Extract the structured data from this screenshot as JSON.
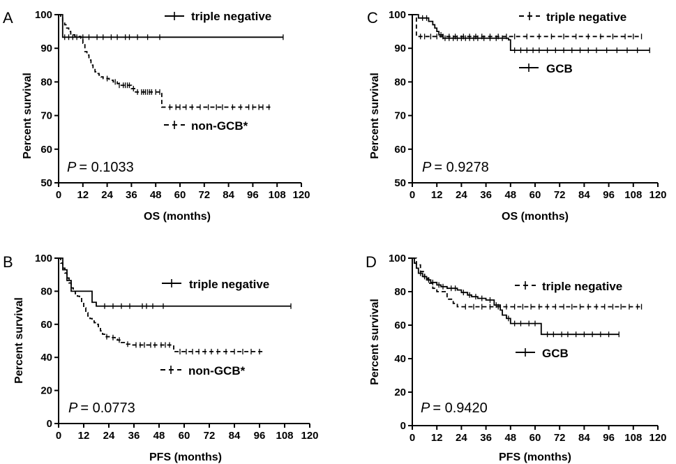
{
  "colors": {
    "ink": "#000000",
    "background": "#ffffff"
  },
  "chart_data": [
    {
      "panel": "A",
      "type": "line",
      "subtype": "kaplan-meier step",
      "xlabel": "OS (months)",
      "ylabel": "Percent survival",
      "xlim": [
        0,
        120
      ],
      "ylim": [
        50,
        100
      ],
      "xticks": [
        0,
        12,
        24,
        36,
        48,
        60,
        72,
        84,
        96,
        108,
        120
      ],
      "yticks": [
        50,
        60,
        70,
        80,
        90,
        100
      ],
      "pvalue_label": "P",
      "pvalue": "= 0.1033",
      "legend": [
        {
          "name": "triple negative",
          "style": "solid",
          "placement": "top"
        },
        {
          "name": "non-GCB*",
          "style": "dashed",
          "placement": "middle"
        }
      ],
      "series": [
        {
          "name": "triple negative",
          "style": "solid",
          "steps": [
            [
              0,
              100
            ],
            [
              2,
              93.3
            ],
            [
              111,
              93.3
            ]
          ],
          "censors": [
            3,
            5,
            7,
            9,
            12,
            15,
            19,
            22,
            26,
            29,
            33,
            35,
            39,
            44,
            50,
            111
          ]
        },
        {
          "name": "non-GCB*",
          "style": "dashed",
          "steps": [
            [
              0,
              100
            ],
            [
              1,
              99
            ],
            [
              2,
              98
            ],
            [
              3,
              97
            ],
            [
              4,
              96
            ],
            [
              5,
              95
            ],
            [
              6,
              94
            ],
            [
              8,
              93.5
            ],
            [
              11,
              93
            ],
            [
              12,
              91.5
            ],
            [
              13,
              89
            ],
            [
              14,
              88
            ],
            [
              15,
              86.5
            ],
            [
              16,
              85
            ],
            [
              17,
              84
            ],
            [
              18,
              83
            ],
            [
              19,
              82.5
            ],
            [
              20,
              82
            ],
            [
              21,
              81.5
            ],
            [
              22,
              81
            ],
            [
              25,
              80.5
            ],
            [
              27,
              80
            ],
            [
              29,
              79.5
            ],
            [
              30,
              79
            ],
            [
              36,
              78
            ],
            [
              38,
              77
            ],
            [
              51,
              72.5
            ],
            [
              105,
              72.5
            ]
          ],
          "censors": [
            24,
            28,
            30,
            32,
            33,
            34,
            35,
            37,
            39,
            41,
            42,
            43,
            44,
            45,
            46,
            48,
            50,
            55,
            58,
            60,
            63,
            66,
            70,
            74,
            78,
            81,
            86,
            90,
            94,
            96,
            99,
            101,
            104
          ]
        }
      ]
    },
    {
      "panel": "B",
      "type": "line",
      "subtype": "kaplan-meier step",
      "xlabel": "PFS (months)",
      "ylabel": "Percent survival",
      "xlim": [
        0,
        120
      ],
      "ylim": [
        0,
        100
      ],
      "xticks": [
        0,
        12,
        24,
        36,
        48,
        60,
        72,
        84,
        96,
        108,
        120
      ],
      "yticks": [
        0,
        20,
        40,
        60,
        80,
        100
      ],
      "pvalue_label": "P",
      "pvalue": "= 0.0773",
      "legend": [
        {
          "name": "triple negative",
          "style": "solid",
          "placement": "top"
        },
        {
          "name": "non-GCB*",
          "style": "dashed",
          "placement": "bottom"
        }
      ],
      "series": [
        {
          "name": "triple negative",
          "style": "solid",
          "steps": [
            [
              0,
              100
            ],
            [
              2,
              93
            ],
            [
              4,
              86.5
            ],
            [
              6,
              80
            ],
            [
              16,
              73.3
            ],
            [
              18,
              71
            ],
            [
              111,
              71
            ]
          ],
          "censors": [
            22,
            26,
            30,
            34,
            40,
            42,
            45,
            50,
            111
          ]
        },
        {
          "name": "non-GCB*",
          "style": "dashed",
          "steps": [
            [
              0,
              100
            ],
            [
              1,
              97
            ],
            [
              2,
              94
            ],
            [
              3,
              91
            ],
            [
              4,
              88
            ],
            [
              5,
              85
            ],
            [
              6,
              82
            ],
            [
              7,
              80
            ],
            [
              8,
              78.5
            ],
            [
              9,
              77
            ],
            [
              10,
              76
            ],
            [
              11,
              73
            ],
            [
              12,
              70
            ],
            [
              13,
              67
            ],
            [
              14,
              65
            ],
            [
              15,
              63.5
            ],
            [
              16,
              62
            ],
            [
              17,
              61
            ],
            [
              18,
              60
            ],
            [
              19,
              58
            ],
            [
              20,
              56
            ],
            [
              21,
              54
            ],
            [
              22,
              52.5
            ],
            [
              25,
              52
            ],
            [
              27,
              51
            ],
            [
              28,
              50.5
            ],
            [
              30,
              49
            ],
            [
              32,
              48
            ],
            [
              34,
              47.5
            ],
            [
              55,
              43.5
            ],
            [
              98,
              43.5
            ]
          ],
          "censors": [
            23,
            26,
            29,
            33,
            37,
            39,
            41,
            44,
            46,
            49,
            51,
            53,
            58,
            61,
            64,
            67,
            70,
            73,
            76,
            80,
            84,
            88,
            92,
            96
          ]
        }
      ]
    },
    {
      "panel": "C",
      "type": "line",
      "subtype": "kaplan-meier step",
      "xlabel": "OS (months)",
      "ylabel": "Percent survival",
      "xlim": [
        0,
        120
      ],
      "ylim": [
        50,
        100
      ],
      "xticks": [
        0,
        12,
        24,
        36,
        48,
        60,
        72,
        84,
        96,
        108,
        120
      ],
      "yticks": [
        50,
        60,
        70,
        80,
        90,
        100
      ],
      "pvalue_label": "P",
      "pvalue": "= 0.9278",
      "legend": [
        {
          "name": "triple negative",
          "style": "dashed",
          "placement": "top"
        },
        {
          "name": "GCB",
          "style": "solid",
          "placement": "middle"
        }
      ],
      "series": [
        {
          "name": "triple negative",
          "style": "dashed",
          "steps": [
            [
              0,
              100
            ],
            [
              2,
              93.5
            ],
            [
              112,
              93.5
            ]
          ],
          "censors": [
            4,
            6,
            9,
            12,
            15,
            18,
            21,
            25,
            28,
            31,
            34,
            38,
            42,
            46,
            50,
            56,
            62,
            68,
            74,
            80,
            86,
            92,
            98,
            104,
            108,
            112
          ]
        },
        {
          "name": "GCB",
          "style": "solid",
          "steps": [
            [
              0,
              100
            ],
            [
              3,
              99
            ],
            [
              8,
              98
            ],
            [
              10,
              97
            ],
            [
              11,
              96
            ],
            [
              12,
              95
            ],
            [
              13,
              94
            ],
            [
              15,
              93
            ],
            [
              47,
              92.5
            ],
            [
              48,
              89.4
            ],
            [
              116,
              89.4
            ]
          ],
          "censors": [
            5,
            7,
            14,
            16,
            18,
            20,
            22,
            24,
            26,
            28,
            30,
            32,
            35,
            38,
            41,
            44,
            50,
            53,
            56,
            59,
            62,
            66,
            70,
            74,
            78,
            82,
            86,
            90,
            95,
            100,
            105,
            110,
            116
          ]
        }
      ]
    },
    {
      "panel": "D",
      "type": "line",
      "subtype": "kaplan-meier step",
      "xlabel": "PFS (months)",
      "ylabel": "Percent survival",
      "xlim": [
        0,
        120
      ],
      "ylim": [
        0,
        100
      ],
      "xticks": [
        0,
        12,
        24,
        36,
        48,
        60,
        72,
        84,
        96,
        108,
        120
      ],
      "yticks": [
        0,
        20,
        40,
        60,
        80,
        100
      ],
      "pvalue_label": "P",
      "pvalue": "= 0.9420",
      "legend": [
        {
          "name": "triple negative",
          "style": "dashed",
          "placement": "top"
        },
        {
          "name": "GCB",
          "style": "solid",
          "placement": "bottom"
        }
      ],
      "series": [
        {
          "name": "triple negative",
          "style": "dashed",
          "steps": [
            [
              0,
              100
            ],
            [
              2,
              96
            ],
            [
              4,
              92
            ],
            [
              6,
              88
            ],
            [
              8,
              85
            ],
            [
              10,
              82
            ],
            [
              12,
              80
            ],
            [
              17,
              75.5
            ],
            [
              20,
              73
            ],
            [
              22,
              71
            ],
            [
              112,
              71
            ]
          ],
          "censors": [
            26,
            30,
            34,
            38,
            42,
            46,
            50,
            54,
            58,
            62,
            66,
            70,
            74,
            78,
            82,
            86,
            90,
            94,
            98,
            102,
            106,
            110,
            112
          ]
        },
        {
          "name": "GCB",
          "style": "solid",
          "steps": [
            [
              0,
              100
            ],
            [
              1,
              97
            ],
            [
              2,
              94
            ],
            [
              3,
              91
            ],
            [
              5,
              89
            ],
            [
              7,
              87
            ],
            [
              9,
              85.5
            ],
            [
              12,
              84
            ],
            [
              14,
              83
            ],
            [
              17,
              82
            ],
            [
              22,
              81
            ],
            [
              24,
              79.5
            ],
            [
              27,
              78
            ],
            [
              29,
              77
            ],
            [
              32,
              76
            ],
            [
              36,
              75
            ],
            [
              40,
              72
            ],
            [
              43,
              69
            ],
            [
              44,
              66
            ],
            [
              46,
              64
            ],
            [
              48,
              61
            ],
            [
              63,
              54.5
            ],
            [
              101,
              54.5
            ]
          ],
          "censors": [
            4,
            6,
            8,
            10,
            13,
            15,
            19,
            21,
            25,
            28,
            31,
            34,
            38,
            41,
            47,
            50,
            53,
            57,
            60,
            66,
            69,
            73,
            76,
            80,
            84,
            88,
            92,
            96,
            101
          ]
        }
      ]
    }
  ]
}
